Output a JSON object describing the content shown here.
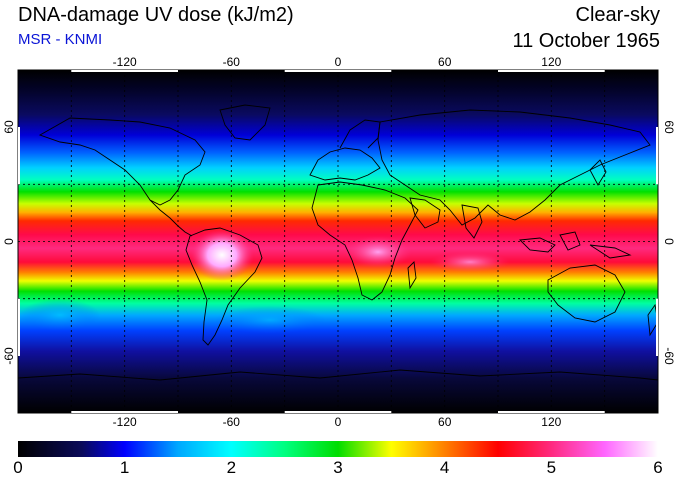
{
  "header": {
    "title": "DNA-damage UV dose (kJ/m2)",
    "source": "MSR - KNMI",
    "sky_condition": "Clear-sky",
    "date": "11 October 1965"
  },
  "map": {
    "longitude_ticks": [
      "-120",
      "-60",
      "0",
      "60",
      "120"
    ],
    "latitude_ticks": [
      "60",
      "0",
      "-60"
    ],
    "longitude_values": [
      -120,
      -60,
      0,
      60,
      120
    ],
    "latitude_values": [
      60,
      0,
      -60
    ],
    "gridlines": "dashed",
    "extent": {
      "lon": [
        -180,
        180
      ],
      "lat": [
        -90,
        90
      ]
    }
  },
  "colorbar": {
    "labels": [
      "0",
      "1",
      "2",
      "3",
      "4",
      "5",
      "6"
    ],
    "range": [
      0,
      6
    ],
    "stops": [
      {
        "value": 0.0,
        "color": "#000000"
      },
      {
        "value": 0.6,
        "color": "#0a0a5a"
      },
      {
        "value": 1.0,
        "color": "#0000ff"
      },
      {
        "value": 1.5,
        "color": "#00a8ff"
      },
      {
        "value": 2.0,
        "color": "#00ffff"
      },
      {
        "value": 2.5,
        "color": "#00ff80"
      },
      {
        "value": 3.0,
        "color": "#00dd00"
      },
      {
        "value": 3.5,
        "color": "#ffff00"
      },
      {
        "value": 4.0,
        "color": "#ff8000"
      },
      {
        "value": 4.5,
        "color": "#ff0000"
      },
      {
        "value": 5.0,
        "color": "#ff2a7f"
      },
      {
        "value": 5.5,
        "color": "#ff66ff"
      },
      {
        "value": 6.0,
        "color": "#ffffff"
      }
    ]
  }
}
